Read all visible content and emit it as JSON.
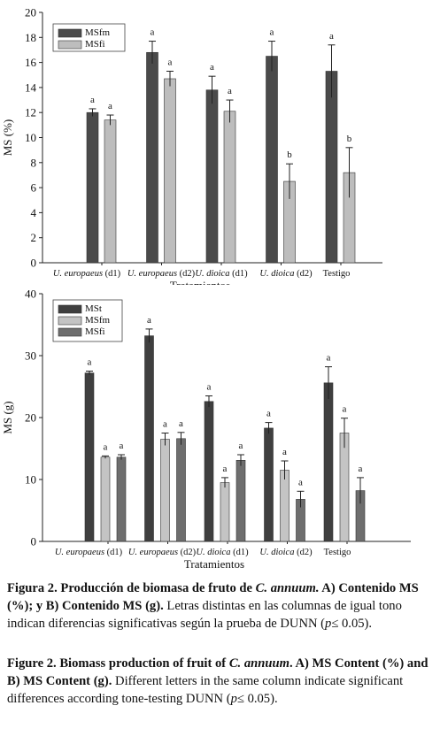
{
  "figure_a": {
    "ylabel": "MS (%)",
    "xlabel": "Tratamientos",
    "colors": {
      "MSfm": "#4a4a4a",
      "MSfi": "#bdbdbd"
    },
    "chart_data": {
      "type": "bar",
      "categories": [
        "U. europaeus (d1)",
        "U. europaeus (d2)",
        "U. dioica (d1)",
        "U. dioica (d2)",
        "Testigo"
      ],
      "category_italic": [
        "U. europaeus",
        "U. europaeus",
        "U. dioica",
        "U. dioica",
        ""
      ],
      "category_suffix": [
        " (d1)",
        " (d2)",
        " (d1)",
        " (d2)",
        "Testigo"
      ],
      "series": [
        {
          "name": "MSfm",
          "values": [
            12.0,
            16.8,
            13.8,
            16.5,
            15.3
          ],
          "errors": [
            0.3,
            0.9,
            1.1,
            1.2,
            2.1
          ],
          "letters": [
            "a",
            "a",
            "a",
            "a",
            "a"
          ]
        },
        {
          "name": "MSfi",
          "values": [
            11.4,
            14.7,
            12.1,
            6.5,
            7.2
          ],
          "errors": [
            0.4,
            0.6,
            0.9,
            1.4,
            2.0
          ],
          "letters": [
            "a",
            "a",
            "a",
            "b",
            "b"
          ]
        }
      ],
      "ylim": [
        0,
        20
      ],
      "yticks": [
        0,
        2,
        4,
        6,
        8,
        10,
        12,
        14,
        16,
        18,
        20
      ],
      "xlabel": "Tratamientos",
      "ylabel": "MS (%)",
      "legend": "top-left",
      "grid": false
    }
  },
  "figure_b": {
    "ylabel": "MS (g)",
    "xlabel": "Tratamientos",
    "colors": {
      "MSt": "#3f3f3f",
      "MSfm": "#c4c4c4",
      "MSfi": "#6e6e6e"
    },
    "chart_data": {
      "type": "bar",
      "categories": [
        "U. europaeus (d1)",
        "U. europaeus (d2)",
        "U. dioica (d1)",
        "U. dioica (d2)",
        "Testigo"
      ],
      "category_italic": [
        "U. europaeus",
        "U. europaeus",
        "U. dioica",
        "U. dioica",
        ""
      ],
      "category_suffix": [
        " (d1)",
        " (d2)",
        " (d1)",
        " (d2)",
        "Testigo"
      ],
      "series": [
        {
          "name": "MSt",
          "values": [
            27.2,
            33.2,
            22.6,
            18.3,
            25.6
          ],
          "errors": [
            0.3,
            1.1,
            0.9,
            0.9,
            2.6
          ],
          "letters": [
            "a",
            "a",
            "a",
            "a",
            "a"
          ]
        },
        {
          "name": "MSfm",
          "values": [
            13.6,
            16.5,
            9.5,
            11.5,
            17.5
          ],
          "errors": [
            0.2,
            1.0,
            0.8,
            1.5,
            2.4
          ],
          "letters": [
            "a",
            "a",
            "a",
            "a",
            "a"
          ]
        },
        {
          "name": "MSfi",
          "values": [
            13.6,
            16.6,
            13.1,
            6.8,
            8.2
          ],
          "errors": [
            0.4,
            1.0,
            0.9,
            1.3,
            2.1
          ],
          "letters": [
            "a",
            "a",
            "a",
            "a",
            "a"
          ]
        }
      ],
      "ylim": [
        0,
        40
      ],
      "yticks": [
        0,
        10,
        20,
        30,
        40
      ],
      "xlabel": "Tratamientos",
      "ylabel": "MS (g)",
      "legend": "top-left",
      "grid": false
    }
  },
  "caption_es": {
    "lead": "Figura 2. Producción de biomasa de fruto de ",
    "species": "C. annuum.",
    "lead2": " A) Contenido MS (%); y B) Contenido MS (g).",
    "text": " Letras distintas en las columnas de igual tono indican diferencias significativas según la prueba de DUNN (",
    "p": "p",
    "tail": "≤ 0.05)."
  },
  "caption_en": {
    "lead": "Figure 2. Biomass production of fruit of ",
    "species": "C. annuum",
    "lead2": ". A) MS Content (%) and B) MS Content (g).",
    "text": " Different letters in the same column indicate significant differences according tone-testing DUNN (",
    "p": "p",
    "tail": "≤ 0.05)."
  }
}
